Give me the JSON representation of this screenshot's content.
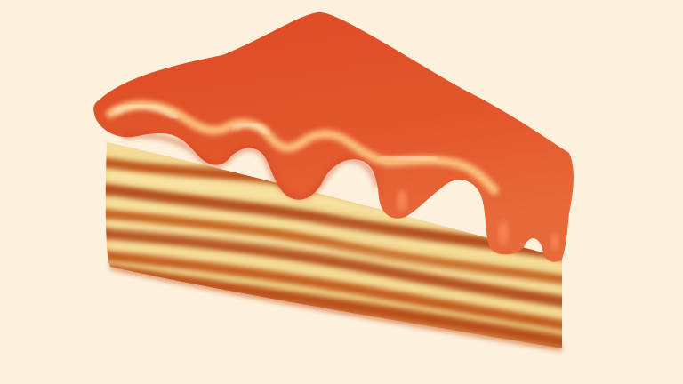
{
  "illustration": {
    "subject": "cake-slice-icon",
    "colors": {
      "background": "#fdf0dc",
      "icing": "#e0522a",
      "icing_highlight": "#ffcf8a",
      "cake_light": "#f6e7a4",
      "cake_dark": "#b8501c"
    }
  }
}
